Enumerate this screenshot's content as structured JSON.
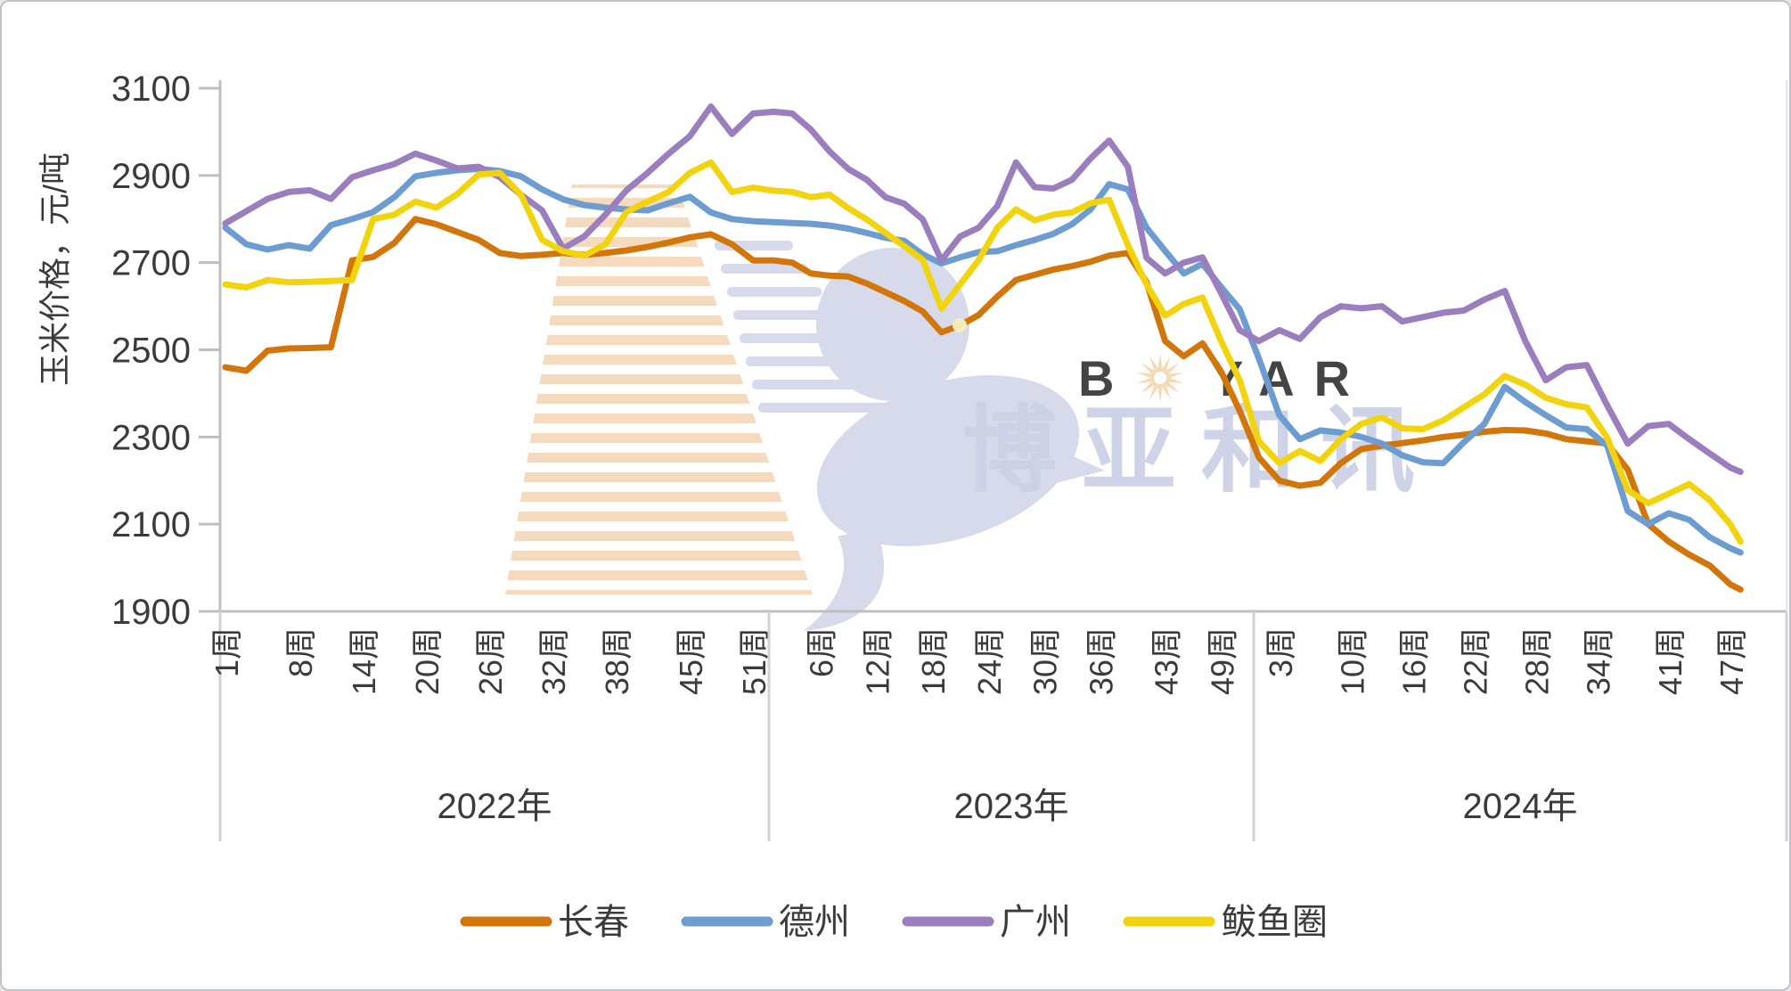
{
  "y_axis": {
    "title": "玉米价格，元/吨",
    "ticks": [
      3100,
      2900,
      2700,
      2500,
      2300,
      2100,
      1900
    ],
    "min": 1900,
    "max": 3100
  },
  "x_axis": {
    "week_suffix": "周",
    "groups": [
      {
        "year": 2022,
        "year_label": "2022年",
        "tick_weeks": [
          1,
          8,
          14,
          20,
          26,
          32,
          38,
          45,
          51
        ]
      },
      {
        "year": 2023,
        "year_label": "2023年",
        "tick_weeks": [
          6,
          12,
          18,
          24,
          30,
          36,
          43,
          49
        ]
      },
      {
        "year": 2024,
        "year_label": "2024年",
        "tick_weeks": [
          3,
          10,
          16,
          22,
          28,
          34,
          41,
          47
        ]
      }
    ]
  },
  "legend": [
    "长春",
    "德州",
    "广州",
    "鲅鱼圈"
  ],
  "watermark": {
    "brand_b": "B",
    "brand_rest": "YAR",
    "brand_cn": "博亚和讯"
  },
  "colors": {
    "axis": "#bfbfbf",
    "divider": "#d2d2d2",
    "text": "#3b3b3b",
    "watermark_lavender": "#ccd1e6",
    "watermark_peach": "#f6d8b4",
    "watermark_stripe": "#f3d6b8",
    "watermark_eye": "#f5efc2"
  },
  "chart_data": {
    "type": "line",
    "title": "",
    "ylabel": "玉米价格，元/吨",
    "unit": "元/吨",
    "ylim": [
      1900,
      3100
    ],
    "grid": false,
    "legend_position": "bottom",
    "sample_weeks": {
      "2022": [
        1,
        3,
        5,
        7,
        9,
        11,
        13,
        15,
        17,
        19,
        21,
        23,
        25,
        27,
        29,
        31,
        33,
        35,
        37,
        39,
        41,
        43,
        45,
        47,
        49,
        51
      ],
      "2023": [
        1,
        3,
        5,
        7,
        9,
        11,
        13,
        15,
        17,
        19,
        21,
        23,
        25,
        27,
        29,
        31,
        33,
        35,
        37,
        39,
        41,
        43,
        45,
        47,
        49,
        51
      ],
      "2024": [
        1,
        3,
        5,
        7,
        9,
        11,
        13,
        15,
        17,
        19,
        21,
        23,
        25,
        27,
        29,
        31,
        33,
        35,
        37,
        39,
        41,
        43,
        45,
        47,
        48
      ]
    },
    "series": [
      {
        "name": "长春",
        "color": "#d2760c",
        "values": {
          "2022": [
            2460,
            2452,
            2498,
            2503,
            2504,
            2506,
            2705,
            2713,
            2745,
            2800,
            2788,
            2770,
            2752,
            2722,
            2715,
            2718,
            2722,
            2718,
            2722,
            2728,
            2736,
            2746,
            2758,
            2765,
            2742,
            2705
          ],
          "2023": [
            2705,
            2700,
            2675,
            2670,
            2668,
            2652,
            2632,
            2612,
            2588,
            2540,
            2556,
            2580,
            2622,
            2660,
            2672,
            2684,
            2692,
            2702,
            2716,
            2722,
            2655,
            2520,
            2485,
            2515,
            2450,
            2360
          ],
          "2024": [
            2253,
            2200,
            2188,
            2195,
            2240,
            2272,
            2280,
            2286,
            2292,
            2300,
            2305,
            2312,
            2316,
            2315,
            2308,
            2295,
            2290,
            2285,
            2225,
            2100,
            2060,
            2030,
            2005,
            1962,
            1950
          ]
        }
      },
      {
        "name": "德州",
        "color": "#6d9cd1",
        "values": {
          "2022": [
            2780,
            2742,
            2730,
            2740,
            2732,
            2786,
            2800,
            2816,
            2850,
            2898,
            2906,
            2912,
            2915,
            2910,
            2898,
            2868,
            2845,
            2832,
            2826,
            2822,
            2820,
            2836,
            2851,
            2815,
            2800,
            2795
          ],
          "2023": [
            2793,
            2791,
            2789,
            2785,
            2778,
            2768,
            2757,
            2750,
            2719,
            2698,
            2712,
            2724,
            2726,
            2740,
            2752,
            2766,
            2788,
            2822,
            2880,
            2868,
            2780,
            2727,
            2675,
            2697,
            2644,
            2593
          ],
          "2024": [
            2480,
            2350,
            2295,
            2315,
            2310,
            2300,
            2285,
            2258,
            2242,
            2240,
            2288,
            2330,
            2415,
            2380,
            2350,
            2322,
            2318,
            2280,
            2130,
            2100,
            2125,
            2110,
            2070,
            2045,
            2035
          ]
        }
      },
      {
        "name": "广州",
        "color": "#9b7ebd",
        "values": {
          "2022": [
            2790,
            2818,
            2846,
            2862,
            2866,
            2846,
            2896,
            2912,
            2926,
            2950,
            2934,
            2916,
            2920,
            2896,
            2856,
            2820,
            2732,
            2760,
            2810,
            2866,
            2906,
            2950,
            2990,
            3058,
            2995,
            3042
          ],
          "2023": [
            3046,
            3042,
            3005,
            2955,
            2915,
            2890,
            2850,
            2835,
            2799,
            2705,
            2760,
            2780,
            2830,
            2930,
            2873,
            2870,
            2890,
            2939,
            2980,
            2920,
            2711,
            2675,
            2700,
            2712,
            2630,
            2545
          ],
          "2024": [
            2520,
            2545,
            2525,
            2575,
            2600,
            2595,
            2600,
            2565,
            2575,
            2585,
            2590,
            2615,
            2635,
            2520,
            2430,
            2460,
            2465,
            2372,
            2285,
            2325,
            2330,
            2295,
            2262,
            2230,
            2220
          ]
        }
      },
      {
        "name": "鲅鱼圈",
        "color": "#f2d40e",
        "values": {
          "2022": [
            2650,
            2643,
            2660,
            2655,
            2656,
            2658,
            2660,
            2800,
            2810,
            2840,
            2826,
            2858,
            2902,
            2906,
            2856,
            2752,
            2726,
            2716,
            2742,
            2816,
            2840,
            2862,
            2906,
            2930,
            2862,
            2872
          ],
          "2023": [
            2865,
            2862,
            2850,
            2856,
            2825,
            2799,
            2768,
            2738,
            2706,
            2595,
            2650,
            2706,
            2780,
            2822,
            2797,
            2810,
            2815,
            2836,
            2844,
            2740,
            2650,
            2578,
            2605,
            2620,
            2520,
            2430
          ],
          "2024": [
            2290,
            2240,
            2268,
            2245,
            2295,
            2330,
            2345,
            2320,
            2318,
            2338,
            2368,
            2398,
            2440,
            2420,
            2390,
            2375,
            2368,
            2298,
            2178,
            2148,
            2170,
            2192,
            2155,
            2100,
            2060
          ]
        }
      }
    ]
  }
}
